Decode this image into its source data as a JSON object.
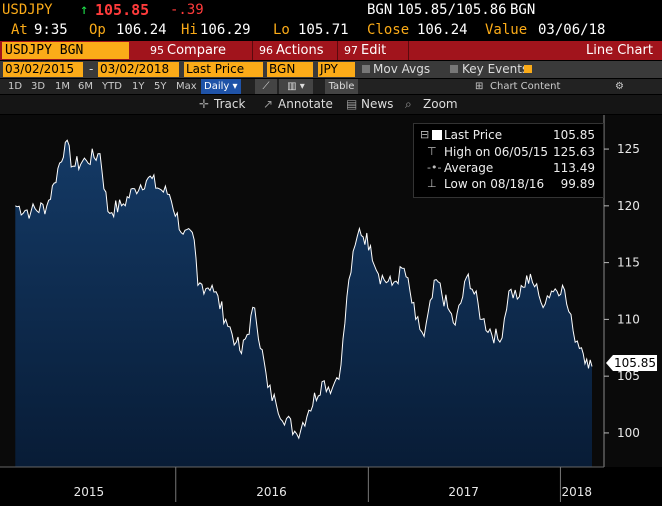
{
  "quote": {
    "symbol": "USDJPY",
    "arrow": "↑",
    "last": "105.85",
    "change": "-.39",
    "source_label": "BGN",
    "bid_ask": "105.85/105.86",
    "source_label2": "BGN",
    "at_label": "At",
    "time": "9:35",
    "op_label": "Op",
    "open": "106.24",
    "hi_label": "Hi",
    "high": "106.29",
    "lo_label": "Lo",
    "low": "105.71",
    "close_label": "Close",
    "close": "106.24",
    "value_label": "Value",
    "value_date": "03/06/18"
  },
  "command_bar": {
    "ticker": "USDJPY BGN Curncy",
    "compare_num": "95",
    "compare": "Compare",
    "actions_num": "96",
    "actions": "Actions",
    "edit_num": "97",
    "edit": "Edit",
    "function": "Line Chart"
  },
  "params": {
    "start_date": "03/02/2015",
    "dash": "-",
    "end_date": "03/02/2018",
    "field": "Last Price",
    "source": "BGN",
    "currency": "JPY",
    "mov_avgs": "Mov Avgs",
    "key_events": "Key Events"
  },
  "periods": {
    "items": [
      "1D",
      "3D",
      "1M",
      "6M",
      "YTD",
      "1Y",
      "5Y",
      "Max"
    ],
    "frequency": "Daily",
    "table": "Table",
    "chart_content": "Chart Content",
    "gear": "⚙"
  },
  "toolbar": {
    "track": "Track",
    "annotate": "Annotate",
    "news": "News",
    "zoom": "Zoom"
  },
  "legend": {
    "last_label": "Last Price",
    "last_value": "105.85",
    "high_label": "High on 06/05/15",
    "high_value": "125.63",
    "avg_label": "Average",
    "avg_value": "113.49",
    "low_label": "Low on 08/18/16",
    "low_value": "99.89"
  },
  "colors": {
    "amber": "#fbab18",
    "bar_red": "#a1141c",
    "area_fill": "#0d2c52",
    "up_green": "#1ee04a",
    "down_red": "#ff3b3b"
  },
  "chart_data": {
    "type": "area",
    "series": [
      {
        "name": "Last Price",
        "x": [
          "2015-03-02",
          "2015-04-01",
          "2015-05-01",
          "2015-05-15",
          "2015-06-05",
          "2015-06-20",
          "2015-07-15",
          "2015-08-10",
          "2015-08-25",
          "2015-09-20",
          "2015-10-15",
          "2015-11-10",
          "2015-12-01",
          "2015-12-20",
          "2016-01-15",
          "2016-02-05",
          "2016-02-12",
          "2016-03-10",
          "2016-04-05",
          "2016-04-25",
          "2016-05-05",
          "2016-05-30",
          "2016-06-24",
          "2016-07-10",
          "2016-08-18",
          "2016-09-10",
          "2016-10-05",
          "2016-10-25",
          "2016-11-10",
          "2016-11-25",
          "2016-12-15",
          "2017-01-05",
          "2017-01-20",
          "2017-02-15",
          "2017-03-10",
          "2017-04-01",
          "2017-04-17",
          "2017-05-10",
          "2017-06-01",
          "2017-06-15",
          "2017-07-10",
          "2017-08-05",
          "2017-09-08",
          "2017-09-25",
          "2017-10-15",
          "2017-11-05",
          "2017-11-25",
          "2017-12-15",
          "2018-01-05",
          "2018-01-25",
          "2018-02-10",
          "2018-02-20",
          "2018-03-02"
        ],
        "y": [
          120.0,
          119.5,
          120.0,
          122.0,
          125.6,
          123.5,
          124.0,
          124.6,
          119.5,
          120.0,
          121.5,
          122.5,
          121.5,
          121.0,
          117.5,
          117.0,
          113.0,
          113.0,
          110.0,
          108.0,
          107.0,
          111.0,
          104.0,
          102.5,
          99.9,
          102.0,
          104.5,
          104.0,
          106.0,
          113.5,
          118.0,
          116.5,
          114.0,
          113.0,
          114.5,
          110.0,
          108.5,
          113.5,
          111.0,
          109.5,
          114.0,
          110.0,
          108.0,
          112.5,
          112.0,
          114.0,
          111.5,
          112.5,
          113.0,
          109.0,
          107.5,
          106.5,
          105.85
        ]
      }
    ],
    "y_ticks": [
      "125",
      "120",
      "115",
      "110",
      "105",
      "100"
    ],
    "x_ticks": [
      "2015",
      "2016",
      "2017",
      "2018"
    ],
    "ylim": [
      97,
      128
    ],
    "y_axis_side": "right",
    "grid": false,
    "current_price_label": "105.85"
  }
}
